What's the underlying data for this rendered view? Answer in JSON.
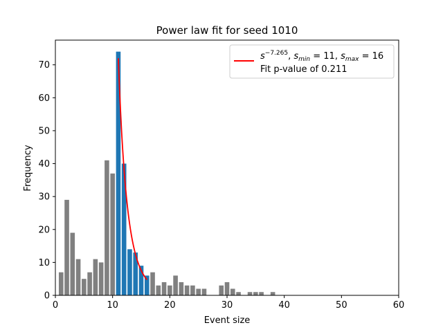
{
  "chart_data": {
    "type": "bar",
    "title": "Power law fit for seed 1010",
    "xlabel": "Event size",
    "ylabel": "Frequency",
    "xlim": [
      0,
      60
    ],
    "ylim": [
      0,
      77.5
    ],
    "xticks": [
      0,
      10,
      20,
      30,
      40,
      50,
      60
    ],
    "yticks": [
      0,
      10,
      20,
      30,
      40,
      50,
      60,
      70
    ],
    "grid": false,
    "legend_placement": "top-right",
    "series": [
      {
        "role": "outside fit range",
        "color": "#808080",
        "points": [
          {
            "x": 1,
            "y": 7
          },
          {
            "x": 2,
            "y": 29
          },
          {
            "x": 3,
            "y": 19
          },
          {
            "x": 4,
            "y": 11
          },
          {
            "x": 5,
            "y": 5
          },
          {
            "x": 6,
            "y": 7
          },
          {
            "x": 7,
            "y": 11
          },
          {
            "x": 8,
            "y": 10
          },
          {
            "x": 9,
            "y": 41
          },
          {
            "x": 10,
            "y": 37
          },
          {
            "x": 17,
            "y": 7
          },
          {
            "x": 18,
            "y": 3
          },
          {
            "x": 19,
            "y": 4
          },
          {
            "x": 20,
            "y": 3
          },
          {
            "x": 21,
            "y": 6
          },
          {
            "x": 22,
            "y": 4
          },
          {
            "x": 23,
            "y": 3
          },
          {
            "x": 24,
            "y": 3
          },
          {
            "x": 25,
            "y": 2
          },
          {
            "x": 26,
            "y": 2
          },
          {
            "x": 29,
            "y": 3
          },
          {
            "x": 30,
            "y": 4
          },
          {
            "x": 31,
            "y": 2
          },
          {
            "x": 32,
            "y": 1
          },
          {
            "x": 34,
            "y": 1
          },
          {
            "x": 35,
            "y": 1
          },
          {
            "x": 36,
            "y": 1
          },
          {
            "x": 38,
            "y": 1
          }
        ]
      },
      {
        "role": "fit range",
        "color": "#1f77b4",
        "points": [
          {
            "x": 11,
            "y": 74
          },
          {
            "x": 12,
            "y": 40
          },
          {
            "x": 13,
            "y": 14
          },
          {
            "x": 14,
            "y": 13
          },
          {
            "x": 15,
            "y": 9
          },
          {
            "x": 16,
            "y": 6
          }
        ]
      }
    ],
    "fit_line": {
      "color": "#ff0000",
      "exponent": -7.265,
      "s_min": 11,
      "s_max": 16,
      "y_at_s_min": 72
    },
    "legend": {
      "line1": {
        "base": "s",
        "exponent": "−7.265",
        "smin_value": "= 11",
        "smax_value": "= 16"
      },
      "line2": "Fit p-value of 0.211"
    }
  }
}
